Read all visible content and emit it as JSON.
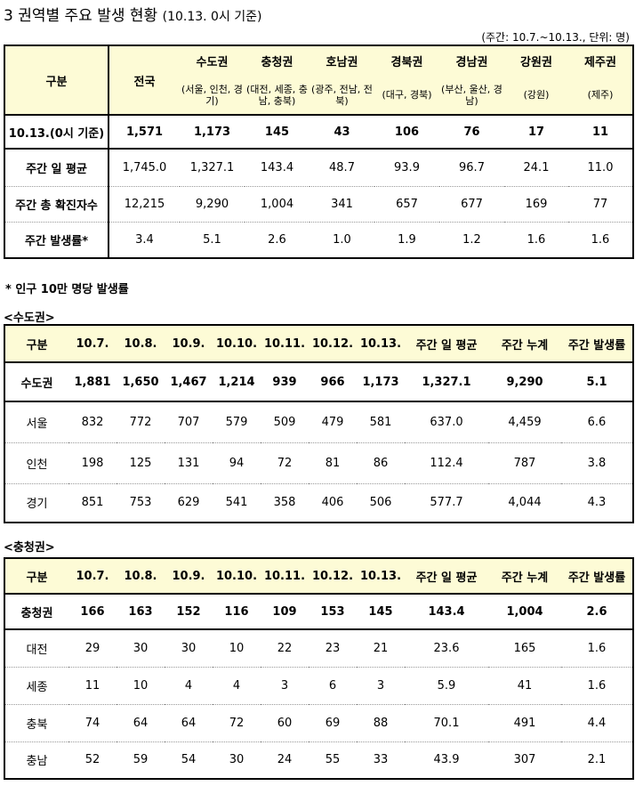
{
  "title": "3 권역별 주요 발생 현황",
  "subtitle": "(10.13. 0시 기준)",
  "unit_note": "(주간: 10.7.~10.13., 단위: 명)",
  "summary": {
    "header": {
      "label": "구분",
      "national": "전국",
      "regions": [
        {
          "name": "수도권",
          "sub": "(서울, 인천, 경기)"
        },
        {
          "name": "충청권",
          "sub": "(대전, 세종, 충남, 충북)"
        },
        {
          "name": "호남권",
          "sub": "(광주, 전남, 전북)"
        },
        {
          "name": "경북권",
          "sub": "(대구, 경북)"
        },
        {
          "name": "경남권",
          "sub": "(부산, 울산, 경남)"
        },
        {
          "name": "강원권",
          "sub": "(강원)"
        },
        {
          "name": "제주권",
          "sub": "(제주)"
        }
      ]
    },
    "rows": [
      {
        "label": "10.13.(0시 기준)",
        "values": [
          "1,571",
          "1,173",
          "145",
          "43",
          "106",
          "76",
          "17",
          "11"
        ]
      },
      {
        "label": "주간 일 평균",
        "values": [
          "1,745.0",
          "1,327.1",
          "143.4",
          "48.7",
          "93.9",
          "96.7",
          "24.1",
          "11.0"
        ]
      },
      {
        "label": "주간 총 확진자수",
        "values": [
          "12,215",
          "9,290",
          "1,004",
          "341",
          "657",
          "677",
          "169",
          "77"
        ]
      },
      {
        "label": "주간 발생률*",
        "values": [
          "3.4",
          "5.1",
          "2.6",
          "1.0",
          "1.9",
          "1.2",
          "1.6",
          "1.6"
        ]
      }
    ]
  },
  "footnote": "* 인구 10만 명당 발생률",
  "capital": {
    "section_label": "<수도권>",
    "header": [
      "구분",
      "10.7.",
      "10.8.",
      "10.9.",
      "10.10.",
      "10.11.",
      "10.12.",
      "10.13.",
      "주간 일 평균",
      "주간 누계",
      "주간 발생률"
    ],
    "total": {
      "label": "수도권",
      "values": [
        "1,881",
        "1,650",
        "1,467",
        "1,214",
        "939",
        "966",
        "1,173",
        "1,327.1",
        "9,290",
        "5.1"
      ]
    },
    "rows": [
      {
        "label": "서울",
        "values": [
          "832",
          "772",
          "707",
          "579",
          "509",
          "479",
          "581",
          "637.0",
          "4,459",
          "6.6"
        ]
      },
      {
        "label": "인천",
        "values": [
          "198",
          "125",
          "131",
          "94",
          "72",
          "81",
          "86",
          "112.4",
          "787",
          "3.8"
        ]
      },
      {
        "label": "경기",
        "values": [
          "851",
          "753",
          "629",
          "541",
          "358",
          "406",
          "506",
          "577.7",
          "4,044",
          "4.3"
        ]
      }
    ]
  },
  "chungcheong": {
    "section_label": "<충청권>",
    "header": [
      "구분",
      "10.7.",
      "10.8.",
      "10.9.",
      "10.10.",
      "10.11.",
      "10.12.",
      "10.13.",
      "주간 일 평균",
      "주간 누계",
      "주간 발생률"
    ],
    "total": {
      "label": "충청권",
      "values": [
        "166",
        "163",
        "152",
        "116",
        "109",
        "153",
        "145",
        "143.4",
        "1,004",
        "2.6"
      ]
    },
    "rows": [
      {
        "label": "대전",
        "values": [
          "29",
          "30",
          "30",
          "10",
          "22",
          "23",
          "21",
          "23.6",
          "165",
          "1.6"
        ]
      },
      {
        "label": "세종",
        "values": [
          "11",
          "10",
          "4",
          "4",
          "3",
          "6",
          "3",
          "5.9",
          "41",
          "1.6"
        ]
      },
      {
        "label": "충북",
        "values": [
          "74",
          "64",
          "64",
          "72",
          "60",
          "69",
          "88",
          "70.1",
          "491",
          "4.4"
        ]
      },
      {
        "label": "충남",
        "values": [
          "52",
          "59",
          "54",
          "30",
          "24",
          "55",
          "33",
          "43.9",
          "307",
          "2.1"
        ]
      }
    ]
  }
}
